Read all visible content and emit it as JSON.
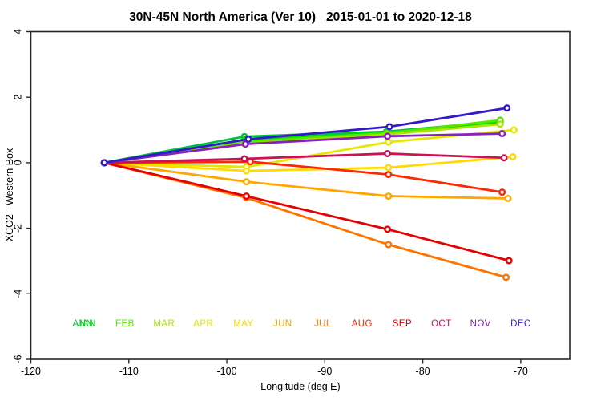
{
  "chart_data": {
    "type": "line",
    "title": "30N-45N North America (Ver 10)   2015-01-01 to 2020-12-18",
    "xlabel": "Longitude (deg E)",
    "ylabel": "XCO2 - Western Box",
    "xlim": [
      -120,
      -65
    ],
    "ylim": [
      -6,
      4
    ],
    "xticks": [
      -120,
      -110,
      -100,
      -90,
      -80,
      -70
    ],
    "yticks": [
      -6,
      -4,
      -2,
      0,
      2,
      4
    ],
    "grid": false,
    "marker": "open-circle",
    "legend_position": "bottom-inside",
    "legend_y": -5.0,
    "legend": [
      {
        "label": "ANN",
        "color": "#00C040",
        "x": -114.7
      },
      {
        "label": "JAN",
        "color": "#00E000",
        "x": -114.3
      },
      {
        "label": "FEB",
        "color": "#59E600",
        "x": -110.4
      },
      {
        "label": "MAR",
        "color": "#A6E600",
        "x": -106.4
      },
      {
        "label": "APR",
        "color": "#E6E600",
        "x": -102.4
      },
      {
        "label": "MAY",
        "color": "#FFD900",
        "x": -98.3
      },
      {
        "label": "JUN",
        "color": "#FFA600",
        "x": -94.3
      },
      {
        "label": "JUL",
        "color": "#FF7300",
        "x": -90.2
      },
      {
        "label": "AUG",
        "color": "#FF2600",
        "x": -86.2
      },
      {
        "label": "SEP",
        "color": "#E60000",
        "x": -82.1
      },
      {
        "label": "OCT",
        "color": "#CC1155",
        "x": -78.1
      },
      {
        "label": "NOV",
        "color": "#8822BB",
        "x": -74.1
      },
      {
        "label": "DEC",
        "color": "#3319CC",
        "x": -70.0
      }
    ],
    "series": [
      {
        "name": "ANN",
        "color": "#00C040",
        "x": [
          -112.5,
          -98.2,
          -83.7,
          -72.1
        ],
        "y": [
          0,
          0.8,
          0.95,
          1.26
        ]
      },
      {
        "name": "JAN",
        "color": "#00E000",
        "x": [
          -112.5,
          -98.2,
          -83.7,
          -72.1
        ],
        "y": [
          0,
          0.7,
          0.92,
          1.22
        ]
      },
      {
        "name": "FEB",
        "color": "#59E600",
        "x": [
          -112.5,
          -98.2,
          -83.7,
          -72.1
        ],
        "y": [
          0,
          0.64,
          0.9,
          1.3
        ]
      },
      {
        "name": "MAR",
        "color": "#A6E600",
        "x": [
          -112.5,
          -98.2,
          -83.7,
          -72.1
        ],
        "y": [
          0,
          0.58,
          0.86,
          1.18
        ]
      },
      {
        "name": "APR",
        "color": "#E6E600",
        "x": [
          -112.5,
          -98.0,
          -83.5,
          -70.7
        ],
        "y": [
          0,
          -0.13,
          0.63,
          1.0
        ]
      },
      {
        "name": "MAY",
        "color": "#FFD900",
        "x": [
          -112.5,
          -98.0,
          -83.5,
          -70.8
        ],
        "y": [
          0,
          -0.25,
          -0.15,
          0.18
        ]
      },
      {
        "name": "JUN",
        "color": "#FFA600",
        "x": [
          -112.5,
          -98.0,
          -83.5,
          -71.3
        ],
        "y": [
          0,
          -0.58,
          -1.02,
          -1.09
        ]
      },
      {
        "name": "JUL",
        "color": "#FF7300",
        "x": [
          -112.5,
          -98.0,
          -83.5,
          -71.5
        ],
        "y": [
          0,
          -1.07,
          -2.5,
          -3.5
        ]
      },
      {
        "name": "AUG",
        "color": "#FF2600",
        "x": [
          -112.5,
          -97.6,
          -83.5,
          -71.9
        ],
        "y": [
          0,
          0.03,
          -0.36,
          -0.9
        ]
      },
      {
        "name": "SEP",
        "color": "#E60000",
        "x": [
          -112.5,
          -98.0,
          -83.6,
          -71.2
        ],
        "y": [
          0,
          -1.02,
          -2.03,
          -2.99
        ]
      },
      {
        "name": "OCT",
        "color": "#CC1155",
        "x": [
          -112.5,
          -98.2,
          -83.6,
          -71.7
        ],
        "y": [
          0,
          0.12,
          0.28,
          0.15
        ]
      },
      {
        "name": "NOV",
        "color": "#8822BB",
        "x": [
          -112.5,
          -98.1,
          -83.6,
          -71.9
        ],
        "y": [
          0,
          0.57,
          0.81,
          0.89
        ]
      },
      {
        "name": "DEC",
        "color": "#3319CC",
        "x": [
          -112.5,
          -97.8,
          -83.4,
          -71.4
        ],
        "y": [
          0,
          0.72,
          1.1,
          1.67
        ]
      }
    ]
  }
}
